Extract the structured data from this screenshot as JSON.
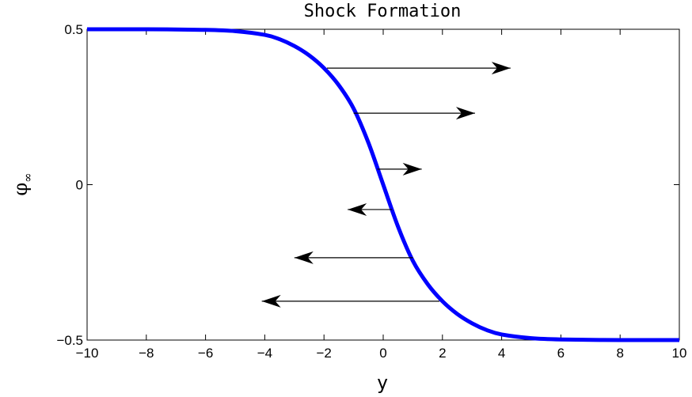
{
  "chart_data": {
    "type": "line",
    "title": "Shock Formation",
    "xlabel": "y",
    "ylabel": "φ",
    "ylabel_subscript": "∞",
    "xlim": [
      -10,
      10
    ],
    "ylim": [
      -0.5,
      0.5
    ],
    "xticks": [
      -10,
      -8,
      -6,
      -4,
      -2,
      0,
      2,
      4,
      6,
      8,
      10
    ],
    "xtick_labels": [
      "−10",
      "−8",
      "−6",
      "−4",
      "−2",
      "0",
      "2",
      "4",
      "6",
      "8",
      "10"
    ],
    "yticks": [
      -0.5,
      0,
      0.5
    ],
    "ytick_labels": [
      "−0.5",
      "0",
      "0.5"
    ],
    "grid": false,
    "series": [
      {
        "color": "#0000ff",
        "x": [
          -10,
          -8,
          -6,
          -5,
          -4,
          -3.5,
          -3,
          -2.5,
          -2,
          -1.5,
          -1,
          -0.5,
          0,
          0.5,
          1,
          1.5,
          2,
          2.5,
          3,
          3.5,
          4,
          5,
          6,
          8,
          10
        ],
        "y": [
          0.5,
          0.5,
          0.498,
          0.494,
          0.482,
          0.468,
          0.446,
          0.416,
          0.375,
          0.32,
          0.245,
          0.135,
          0.0,
          -0.135,
          -0.245,
          -0.32,
          -0.375,
          -0.416,
          -0.446,
          -0.468,
          -0.482,
          -0.494,
          -0.498,
          -0.5,
          -0.5
        ]
      }
    ],
    "arrows": [
      {
        "x_start": -1.9,
        "x_end": 4.3,
        "y": 0.375
      },
      {
        "x_start": -1.0,
        "x_end": 3.1,
        "y": 0.23
      },
      {
        "x_start": -0.2,
        "x_end": 1.3,
        "y": 0.05
      },
      {
        "x_start": 0.3,
        "x_end": -1.2,
        "y": -0.08
      },
      {
        "x_start": 1.0,
        "x_end": -3.0,
        "y": -0.235
      },
      {
        "x_start": 1.9,
        "x_end": -4.1,
        "y": -0.375
      }
    ],
    "arrow_color": "#000000"
  }
}
